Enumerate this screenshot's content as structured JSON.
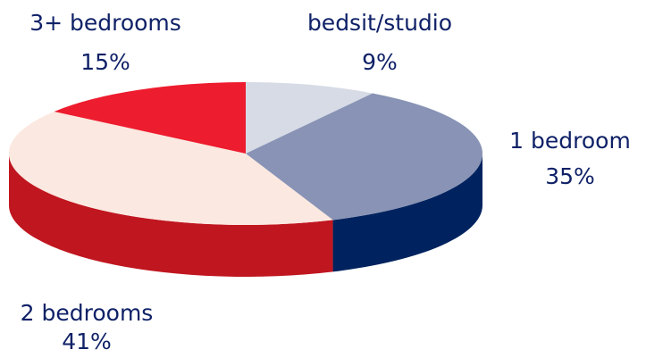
{
  "chart_data": {
    "type": "pie",
    "style": "3d-oval",
    "slices": [
      {
        "category": "bedsit/studio",
        "value": 9,
        "value_label": "9%",
        "color": "#d6dbe6",
        "side_color": "#a9b0c4"
      },
      {
        "category": "1 bedroom",
        "value": 35,
        "value_label": "35%",
        "color": "#8893b5",
        "side_color": "#00235f"
      },
      {
        "category": "2 bedrooms",
        "value": 41,
        "value_label": "41%",
        "color": "#fbe8e0",
        "side_color": "#c0161f"
      },
      {
        "category": "3+ bedrooms",
        "value": 15,
        "value_label": "15%",
        "color": "#ed1c2e",
        "side_color": "#b5121c"
      }
    ],
    "label_color": "#0f2167"
  }
}
